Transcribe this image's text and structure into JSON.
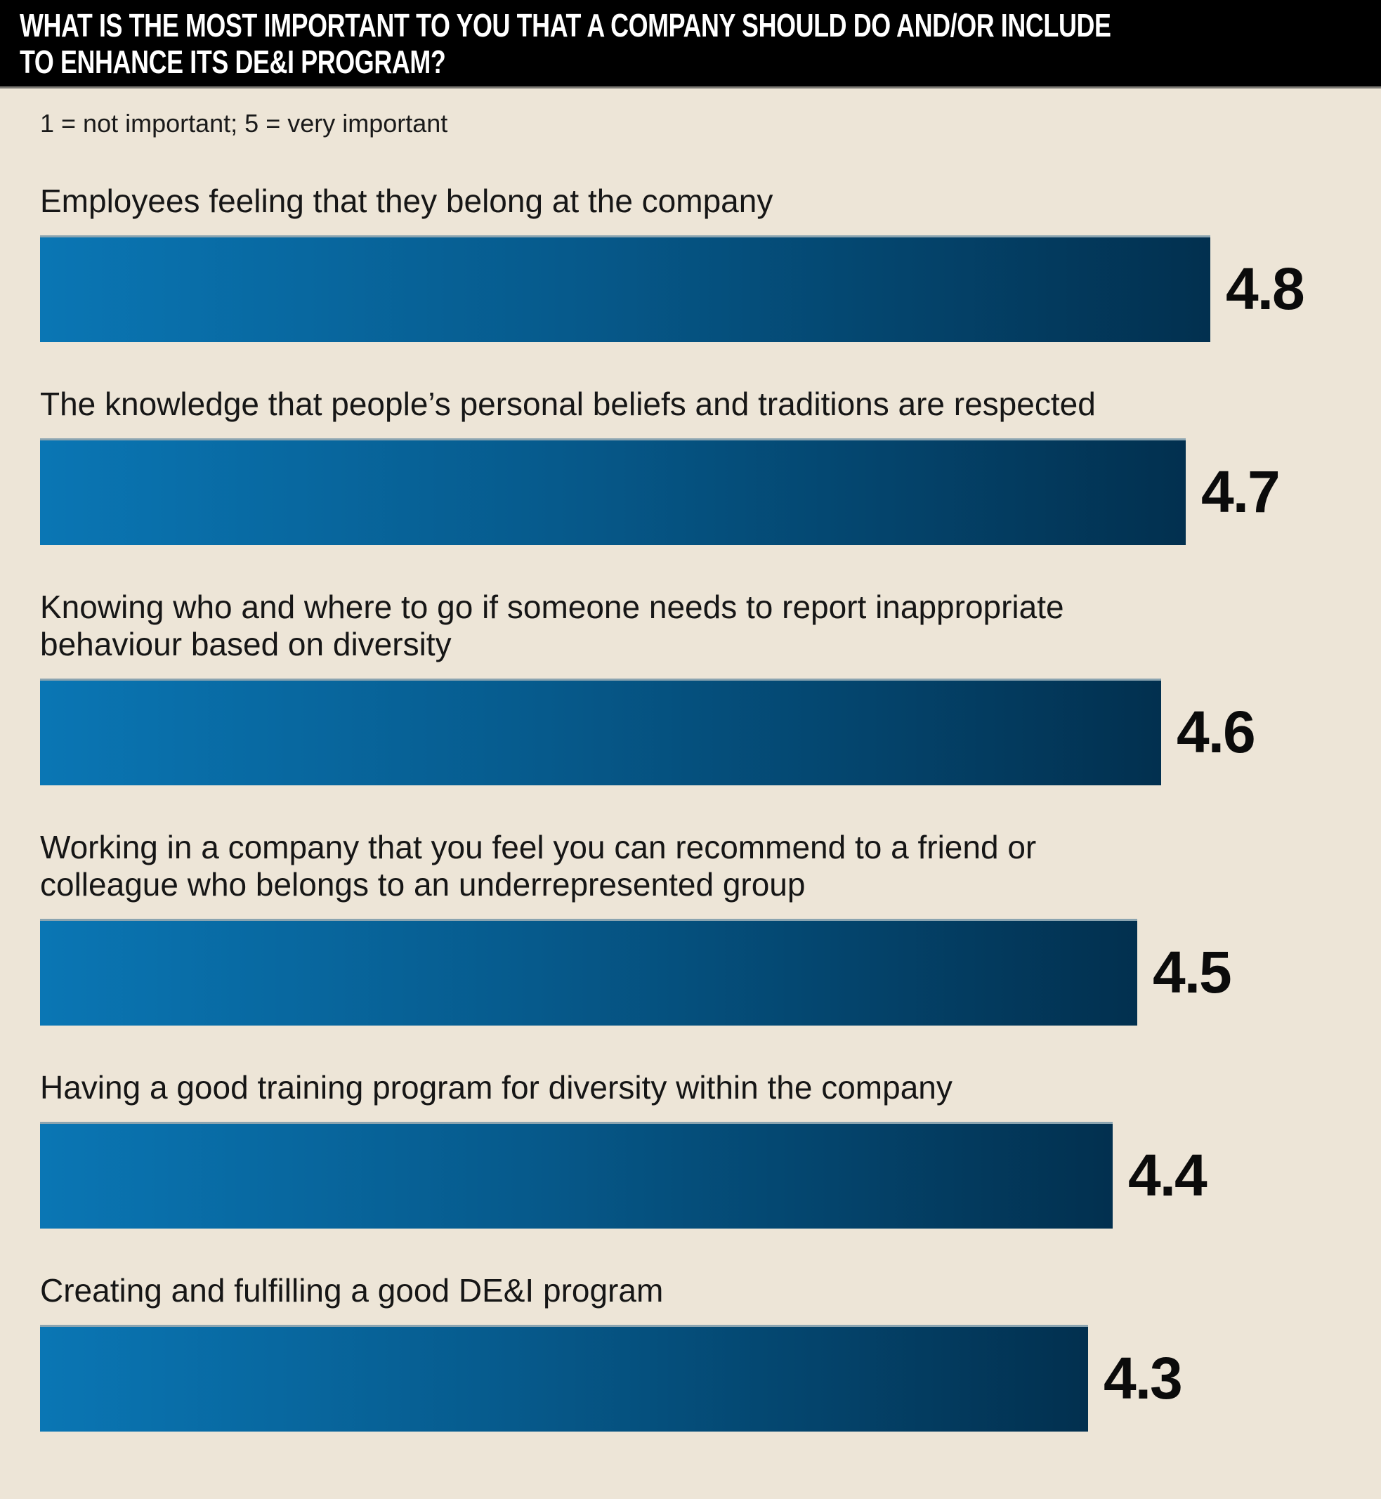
{
  "colors": {
    "page_background": "#ede5d7",
    "header_background": "#000000",
    "header_text": "#ffffff",
    "header_rule": "#7c7a74",
    "bar_gradient_start": "#0a76b4",
    "bar_gradient_mid": "#065a8c",
    "bar_gradient_end": "#02304f",
    "bar_top_highlight": "#8ba4b0",
    "label_text": "#161616",
    "value_text": "#0b0b0b"
  },
  "chart_data": {
    "type": "bar",
    "orientation": "horizontal",
    "title": "WHAT IS THE MOST IMPORTANT TO YOU THAT A COMPANY SHOULD DO AND/OR INCLUDE\nTO ENHANCE ITS DE&I PROGRAM?",
    "subtitle": "1 = not important; 5 = very important",
    "value_scale_note": "1 = not important; 5 = very important",
    "xlim": [
      0,
      5
    ],
    "grid": false,
    "legend": false,
    "data_labels_position": "right-of-bar",
    "categories": [
      "Employees feeling that they belong at the company",
      "The knowledge that people’s personal beliefs and traditions are respected",
      "Knowing who and where to go if someone needs to report inappropriate\nbehaviour based on diversity",
      "Working in a company that you feel you can recommend to a friend or\ncolleague who belongs to an underrepresented group",
      "Having a good training program for diversity within the company",
      "Creating and fulfilling a good DE&I program"
    ],
    "values": [
      4.8,
      4.7,
      4.6,
      4.5,
      4.4,
      4.3
    ]
  }
}
